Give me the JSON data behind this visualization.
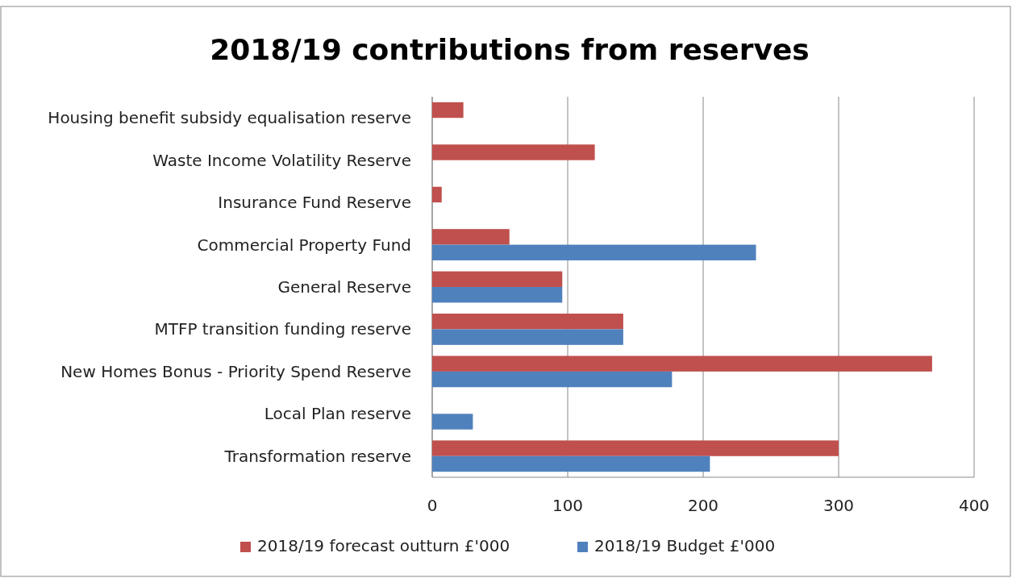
{
  "chart_data": {
    "type": "bar",
    "orientation": "horizontal",
    "title": "2018/19 contributions from reserves",
    "categories": [
      "Housing benefit subsidy equalisation reserve",
      "Waste Income Volatility Reserve",
      "Insurance Fund Reserve",
      "Commercial Property Fund",
      "General Reserve",
      "MTFP transition funding reserve",
      "New Homes Bonus - Priority Spend Reserve",
      "Local Plan reserve",
      "Transformation reserve"
    ],
    "series": [
      {
        "name": "2018/19 forecast outturn £'000",
        "color": "#c0504d",
        "values": [
          23,
          120,
          7,
          57,
          96,
          141,
          369,
          null,
          300
        ]
      },
      {
        "name": "2018/19 Budget £'000",
        "color": "#4f81bd",
        "values": [
          null,
          null,
          null,
          239,
          96,
          141,
          177,
          30,
          205
        ]
      }
    ],
    "xlim": [
      0,
      400
    ],
    "xticks": [
      0,
      100,
      200,
      300,
      400
    ],
    "grid": "x",
    "legend": "bottom"
  }
}
